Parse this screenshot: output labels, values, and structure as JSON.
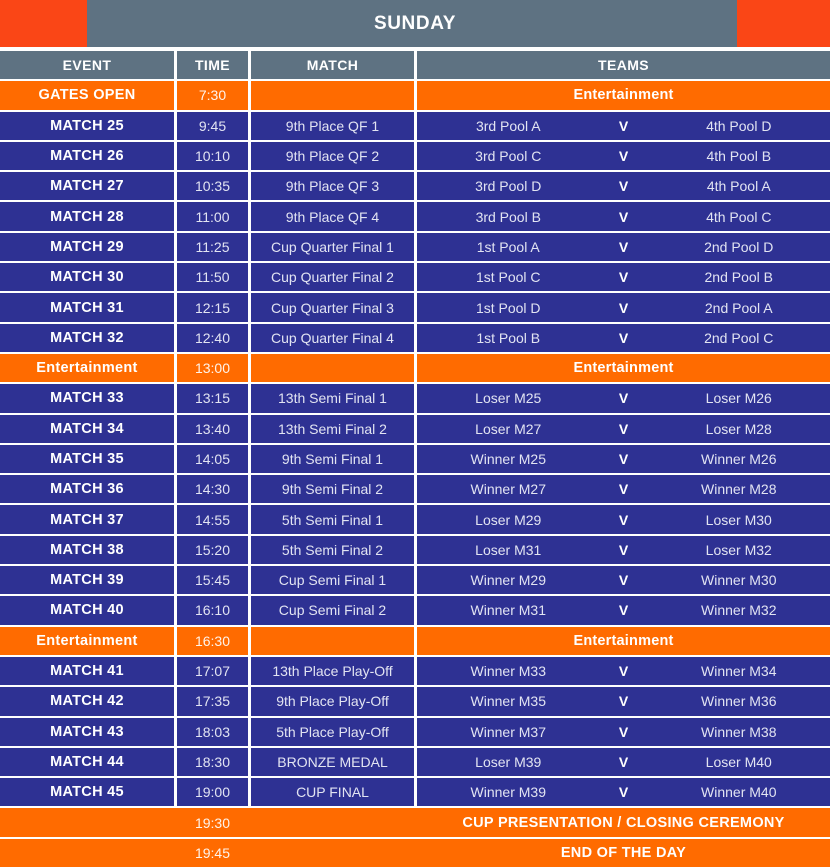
{
  "banner": {
    "title": "SUNDAY"
  },
  "colors": {
    "navy": "#2E3193",
    "orange": "#FF6B00",
    "corner_orange": "#FA4616",
    "slate": "#5E7282"
  },
  "table": {
    "headers": [
      "EVENT",
      "TIME",
      "MATCH",
      "TEAMS"
    ],
    "vs_label": "V",
    "rows": [
      {
        "kind": "highlight",
        "event": "GATES OPEN",
        "time": "7:30",
        "match": "",
        "teams": "Entertainment"
      },
      {
        "kind": "match",
        "event": "MATCH 25",
        "time": "9:45",
        "match": "9th Place QF 1",
        "team1": "3rd Pool A",
        "team2": "4th Pool D"
      },
      {
        "kind": "match",
        "event": "MATCH 26",
        "time": "10:10",
        "match": "9th Place QF 2",
        "team1": "3rd Pool C",
        "team2": "4th Pool B"
      },
      {
        "kind": "match",
        "event": "MATCH 27",
        "time": "10:35",
        "match": "9th Place QF 3",
        "team1": "3rd Pool D",
        "team2": "4th Pool A"
      },
      {
        "kind": "match",
        "event": "MATCH 28",
        "time": "11:00",
        "match": "9th Place QF 4",
        "team1": "3rd Pool B",
        "team2": "4th Pool C"
      },
      {
        "kind": "match",
        "event": "MATCH 29",
        "time": "11:25",
        "match": "Cup Quarter Final 1",
        "team1": "1st Pool A",
        "team2": "2nd Pool D"
      },
      {
        "kind": "match",
        "event": "MATCH 30",
        "time": "11:50",
        "match": "Cup Quarter Final 2",
        "team1": "1st Pool C",
        "team2": "2nd Pool B"
      },
      {
        "kind": "match",
        "event": "MATCH 31",
        "time": "12:15",
        "match": "Cup Quarter Final 3",
        "team1": "1st Pool D",
        "team2": "2nd Pool A"
      },
      {
        "kind": "match",
        "event": "MATCH 32",
        "time": "12:40",
        "match": "Cup Quarter Final 4",
        "team1": "1st Pool B",
        "team2": "2nd Pool C"
      },
      {
        "kind": "highlight",
        "event": "Entertainment",
        "time": "13:00",
        "match": "",
        "teams": "Entertainment"
      },
      {
        "kind": "match",
        "event": "MATCH 33",
        "time": "13:15",
        "match": "13th Semi Final 1",
        "team1": "Loser M25",
        "team2": "Loser M26"
      },
      {
        "kind": "match",
        "event": "MATCH 34",
        "time": "13:40",
        "match": "13th Semi Final 2",
        "team1": "Loser M27",
        "team2": "Loser M28"
      },
      {
        "kind": "match",
        "event": "MATCH 35",
        "time": "14:05",
        "match": "9th Semi Final 1",
        "team1": "Winner M25",
        "team2": "Winner M26"
      },
      {
        "kind": "match",
        "event": "MATCH 36",
        "time": "14:30",
        "match": "9th Semi Final 2",
        "team1": "Winner M27",
        "team2": "Winner M28"
      },
      {
        "kind": "match",
        "event": "MATCH 37",
        "time": "14:55",
        "match": "5th Semi Final 1",
        "team1": "Loser M29",
        "team2": "Loser M30"
      },
      {
        "kind": "match",
        "event": "MATCH 38",
        "time": "15:20",
        "match": "5th Semi Final 2",
        "team1": "Loser M31",
        "team2": "Loser M32"
      },
      {
        "kind": "match",
        "event": "MATCH 39",
        "time": "15:45",
        "match": "Cup Semi Final 1",
        "team1": "Winner M29",
        "team2": "Winner M30"
      },
      {
        "kind": "match",
        "event": "MATCH 40",
        "time": "16:10",
        "match": "Cup Semi Final 2",
        "team1": "Winner M31",
        "team2": "Winner M32"
      },
      {
        "kind": "highlight",
        "event": "Entertainment",
        "time": "16:30",
        "match": "",
        "teams": "Entertainment"
      },
      {
        "kind": "match",
        "event": "MATCH 41",
        "time": "17:07",
        "match": "13th Place Play-Off",
        "team1": "Winner M33",
        "team2": "Winner M34"
      },
      {
        "kind": "match",
        "event": "MATCH 42",
        "time": "17:35",
        "match": "9th Place Play-Off",
        "team1": "Winner M35",
        "team2": "Winner M36"
      },
      {
        "kind": "match",
        "event": "MATCH 43",
        "time": "18:03",
        "match": "5th Place Play-Off",
        "team1": "Winner M37",
        "team2": "Winner M38"
      },
      {
        "kind": "match",
        "event": "MATCH 44",
        "time": "18:30",
        "match": "BRONZE MEDAL",
        "team1": "Loser M39",
        "team2": "Loser M40"
      },
      {
        "kind": "match",
        "event": "MATCH 45",
        "time": "19:00",
        "match": "CUP FINAL",
        "team1": "Winner M39",
        "team2": "Winner M40"
      },
      {
        "kind": "footer",
        "time": "19:30",
        "teams": "CUP PRESENTATION / CLOSING CEREMONY"
      },
      {
        "kind": "footer",
        "time": "19:45",
        "teams": "END OF THE DAY"
      }
    ]
  }
}
